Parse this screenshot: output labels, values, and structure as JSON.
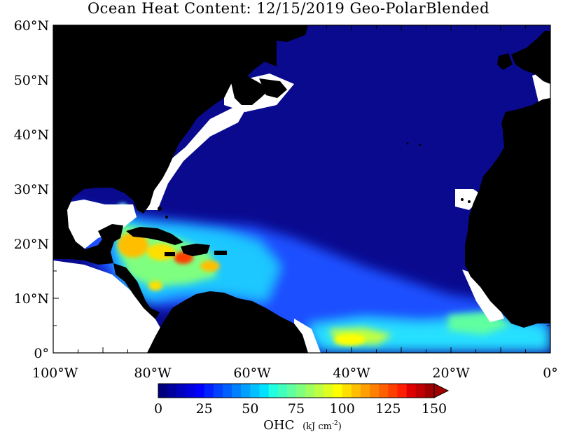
{
  "title": "Ocean Heat Content: 12/15/2019 Geo-PolarBlended",
  "map": {
    "region": "North Atlantic",
    "lon_range": [
      -100,
      0
    ],
    "lat_range": [
      0,
      60
    ],
    "lat_labels": [
      "60°N",
      "50°N",
      "40°N",
      "30°N",
      "20°N",
      "10°N",
      "0°"
    ],
    "lat_values": [
      60,
      50,
      40,
      30,
      20,
      10,
      0
    ],
    "lon_labels": [
      "100°W",
      "80°W",
      "60°W",
      "40°W",
      "20°W",
      "0°"
    ],
    "lon_values": [
      -100,
      -80,
      -60,
      -40,
      -20,
      0
    ]
  },
  "colorbar": {
    "min": 0,
    "max": 150,
    "tick_labels": [
      "0",
      "25",
      "50",
      "75",
      "100",
      "125",
      "150"
    ],
    "label": "OHC",
    "units": "(kJ cm",
    "units_exp": "-2",
    "units_close": ")",
    "colors": [
      "#00007f",
      "#00009f",
      "#0000bf",
      "#0000df",
      "#0000ff",
      "#0020ff",
      "#0040ff",
      "#0060ff",
      "#0080ff",
      "#00a0ff",
      "#00c0ff",
      "#00e0ff",
      "#20ffdf",
      "#40ffbf",
      "#60ff9f",
      "#80ff7f",
      "#a0ff5f",
      "#c0ff3f",
      "#e0ff1f",
      "#ffff00",
      "#ffdf00",
      "#ffbf00",
      "#ff9f00",
      "#ff7f00",
      "#ff5f00",
      "#ff3f00",
      "#ff1f00",
      "#df0000",
      "#bf0000",
      "#9f0000"
    ]
  },
  "colors": {
    "ocean_base": "#0a0a8f",
    "land": "#000000",
    "coast": "#ffffff"
  }
}
